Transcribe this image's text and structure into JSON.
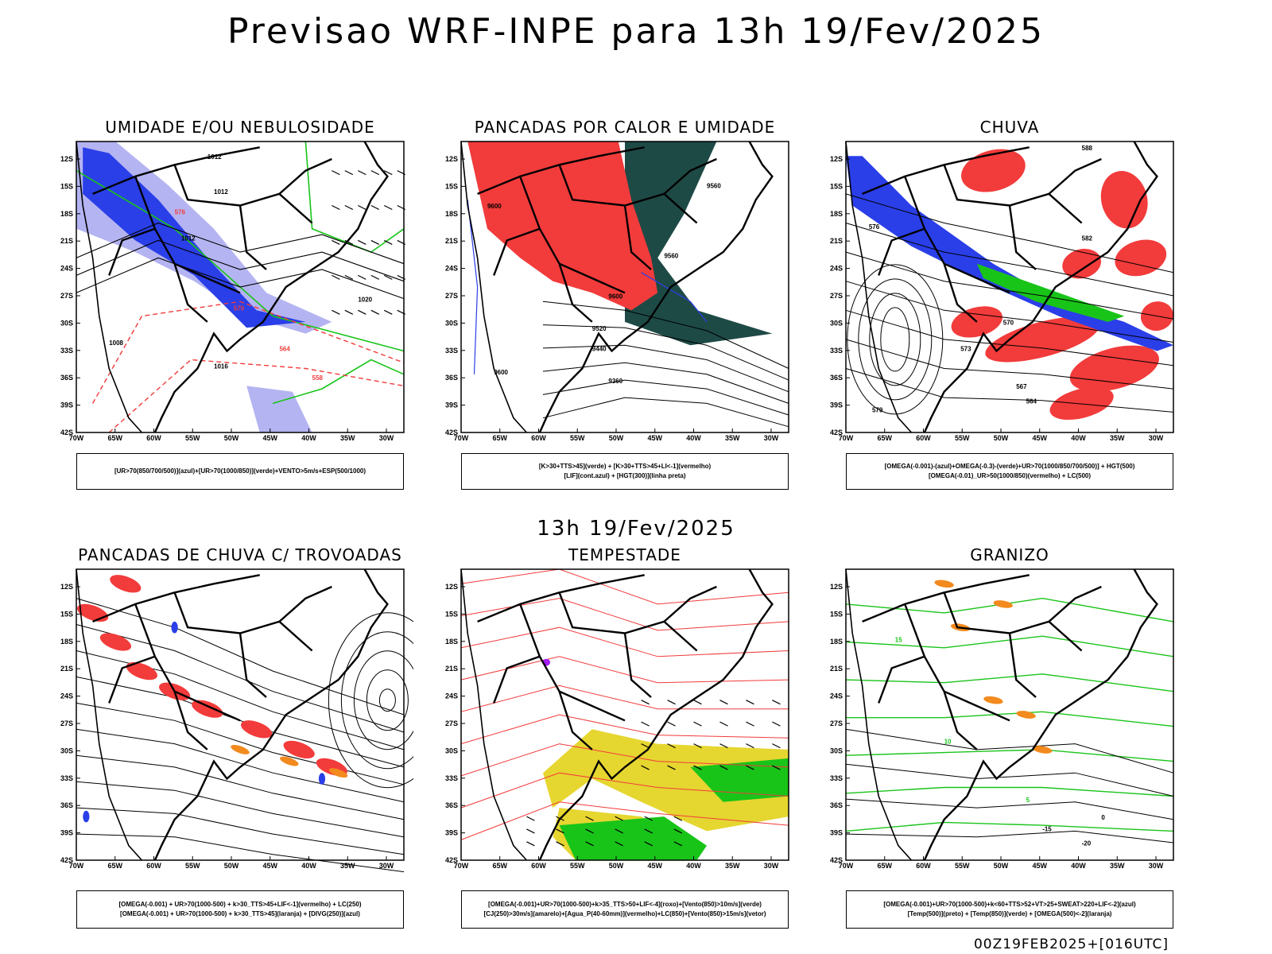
{
  "title": "Previsao WRF-INPE  para 13h 19/Fev/2025",
  "mid_title": "13h 19/Fev/2025",
  "footer": "00Z19FEB2025+[016UTC]",
  "axes": {
    "lat_labels": [
      "12S",
      "15S",
      "18S",
      "21S",
      "24S",
      "27S",
      "30S",
      "33S",
      "36S",
      "39S",
      "42S"
    ],
    "lon_labels": [
      "70W",
      "65W",
      "60W",
      "55W",
      "50W",
      "45W",
      "40W",
      "35W",
      "30W"
    ]
  },
  "colors": {
    "red": "#f23b3b",
    "blue": "#2a3fe8",
    "lightblue": "#b4b4f2",
    "green": "#19c419",
    "darkteal": "#1e4a46",
    "yellow": "#e6d630",
    "orange": "#f28a1e",
    "purple": "#a21ef2"
  },
  "panels": [
    {
      "title": "UMIDADE E/OU NEBULOSIDADE",
      "legend": [
        "[UR>70(850/700/500)](azul)+[UR>70(1000/850)](verde)+VENTO>5m/s+ESP(500/1000)"
      ],
      "contour_labels": [
        "1012",
        "1012",
        "1012",
        "1008",
        "1016",
        "1020",
        "576",
        "570",
        "564",
        "558"
      ]
    },
    {
      "title": "PANCADAS POR CALOR E UMIDADE",
      "legend": [
        "[K>30+TTS>45](verde) + [K>30+TTS>45+LI<-1](vermelho)",
        "[LIF](cont.azul) + [HGT(300)](linha preta)"
      ],
      "contour_labels": [
        "9560",
        "9600",
        "9560",
        "9520",
        "9440",
        "9360",
        "9600",
        "9600"
      ]
    },
    {
      "title": "CHUVA",
      "legend": [
        "[OMEGA(-0.001)-(azul)+OMEGA(-0.3)-(verde)+UR>70(1000/850/700/500)] + HGT(500)",
        "[OMEGA(-0.01)_UR>50(1000/850)(vermelho) + LC(500)"
      ],
      "contour_labels": [
        "588",
        "582",
        "576",
        "570",
        "573",
        "567",
        "564",
        "579"
      ]
    },
    {
      "title": "PANCADAS DE CHUVA C/ TROVOADAS",
      "legend": [
        "[OMEGA(-0.001) + UR>70(1000-500) + k>30_TTS>45+LIF<-1](vermelho) + LC(250)",
        "[OMEGA(-0.001) + UR>70(1000-500) + k>30_TTS>45](laranja) + [DIVG(250)](azul)"
      ],
      "contour_labels": []
    },
    {
      "title": "TEMPESTADE",
      "legend": [
        "[OMEGA(-0.001)+UR>70(1000-500)+k>35_TTS>50+LIF<-4](roxo)+[Vento(850)>10m/s](verde)",
        "[CJ(250)>30m/s](amarelo)+[Agua_P(40-60mm)](vermelho)+LC(850)+[Vento(850)>15m/s](vetor)"
      ],
      "contour_labels": []
    },
    {
      "title": "GRANIZO",
      "legend": [
        "[OMEGA(-0.001)+UR>70(1000-500)+k<60+TTS>52+VT>25+SWEAT>220+LIF<-2](azul)",
        "[Temp(500)](preto) + [Temp(850)](verde) + [OMEGA(500)<-2](laranja)"
      ],
      "contour_labels": [
        "15",
        "10",
        "5",
        "0",
        "-15",
        "-20"
      ]
    }
  ]
}
